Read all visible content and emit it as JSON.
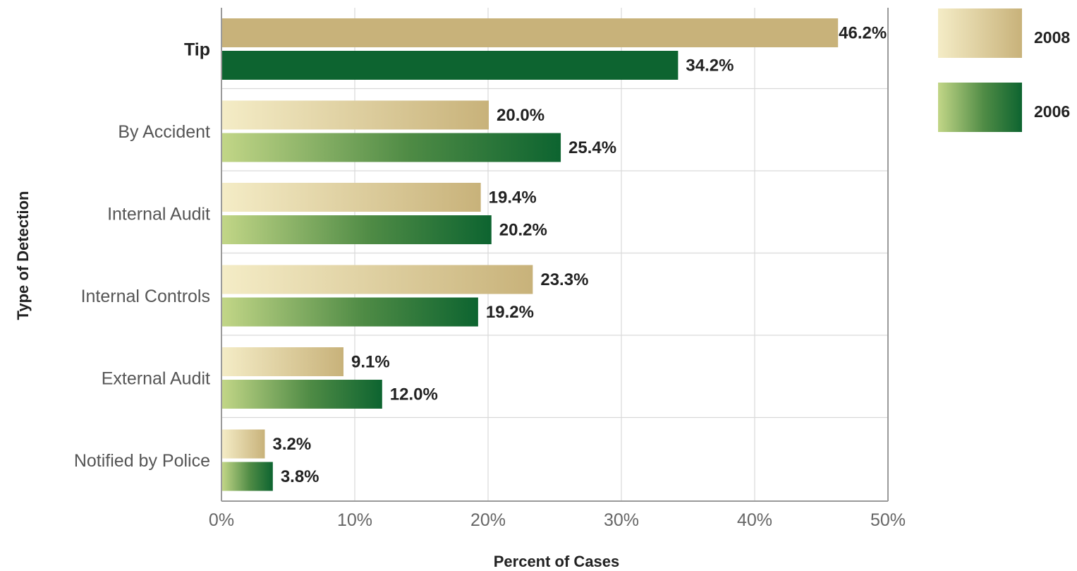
{
  "chart_data": {
    "type": "bar",
    "orientation": "horizontal",
    "categories": [
      "Tip",
      "By Accident",
      "Internal Audit",
      "Internal Controls",
      "External Audit",
      "Notified by Police"
    ],
    "series": [
      {
        "name": "2008",
        "values": [
          46.2,
          20.0,
          19.4,
          23.3,
          9.1,
          3.2
        ],
        "labels": [
          "46.2%",
          "20.0%",
          "19.4%",
          "23.3%",
          "9.1%",
          "3.2%"
        ],
        "color_light": "#f2e8bf",
        "color_dark": "#c8b27a"
      },
      {
        "name": "2006",
        "values": [
          34.2,
          25.4,
          20.2,
          19.2,
          12.0,
          3.8
        ],
        "labels": [
          "34.2%",
          "25.4%",
          "20.2%",
          "19.2%",
          "12.0%",
          "3.8%"
        ],
        "color_light": "#c2d687",
        "color_dark": "#0d6430"
      }
    ],
    "xlabel": "Percent of Cases",
    "ylabel": "Type of Detection",
    "xlim": [
      0,
      50
    ],
    "xticks": [
      0,
      10,
      20,
      30,
      40,
      50
    ],
    "xtick_labels": [
      "0%",
      "10%",
      "20%",
      "30%",
      "40%",
      "50%"
    ],
    "grid": true,
    "legend_position": "top-right",
    "highlighted_category": "Tip",
    "highlight_color": "#0d6430"
  }
}
